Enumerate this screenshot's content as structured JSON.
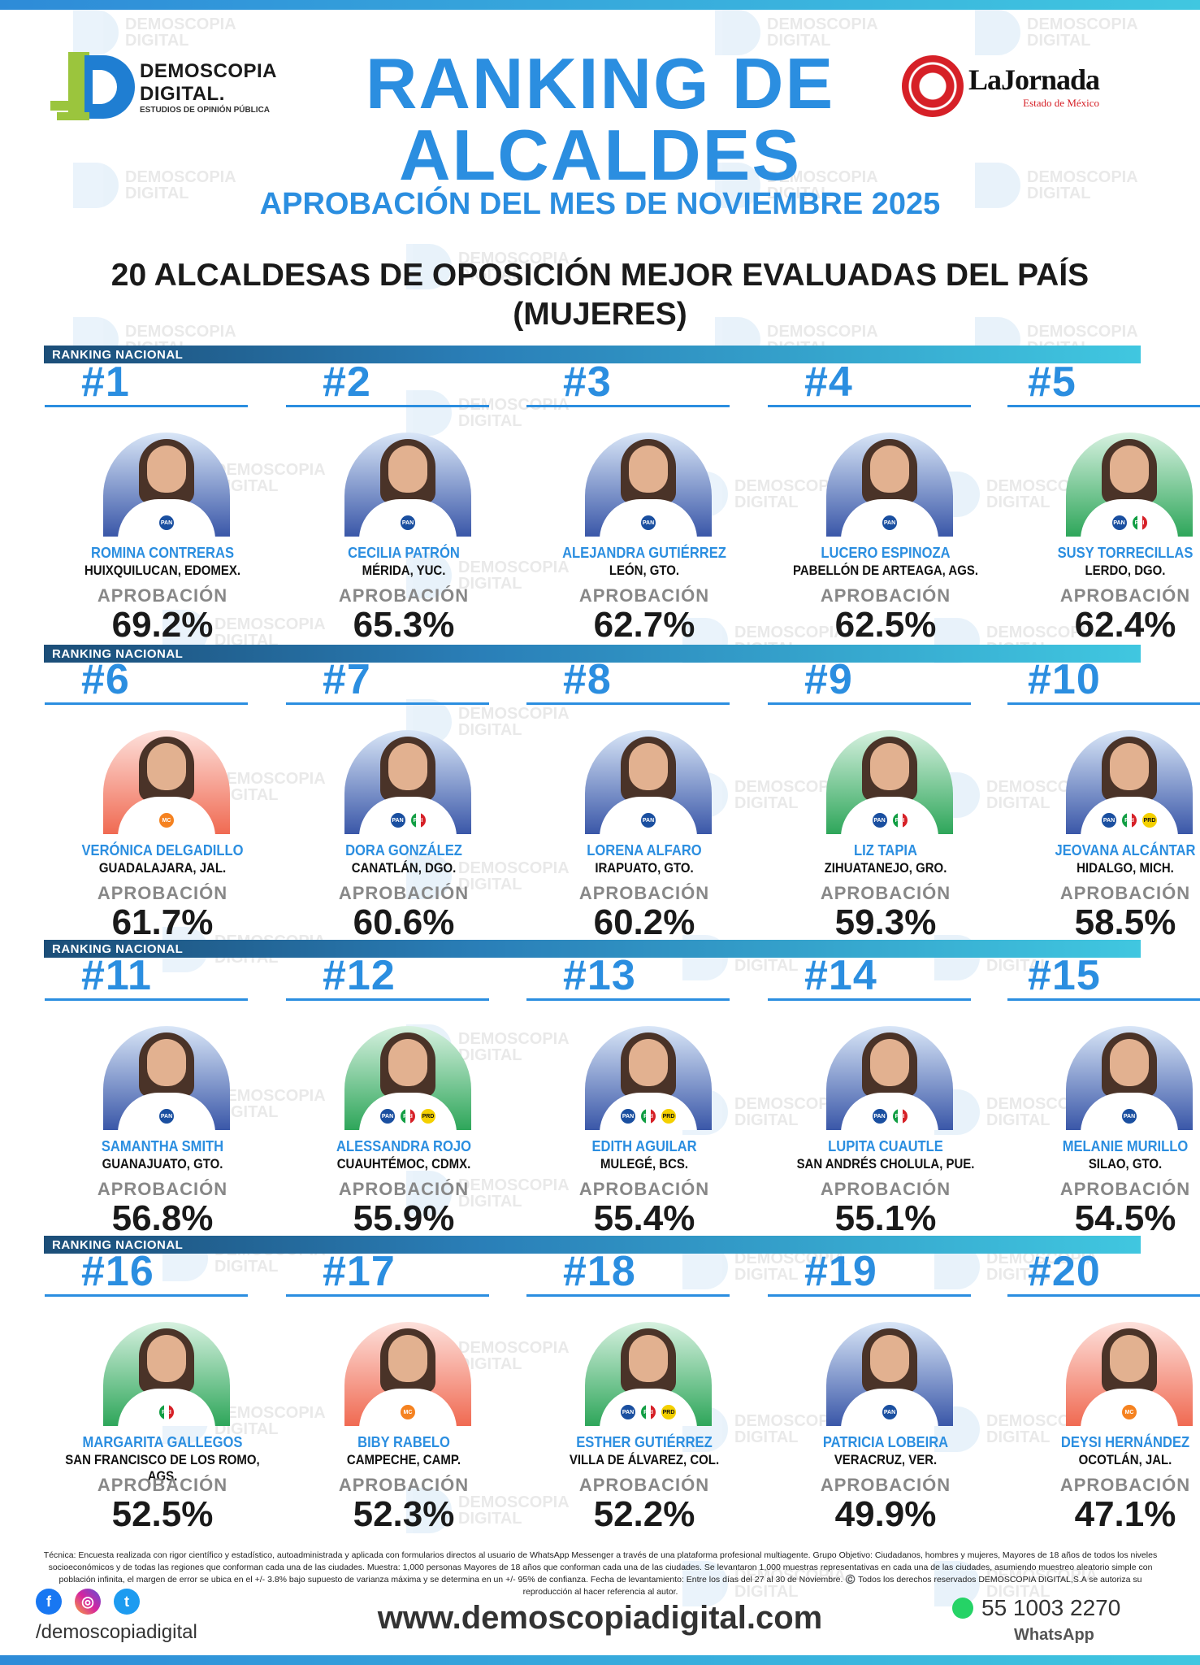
{
  "header": {
    "left_logo": {
      "line1": "DEMOSCOPIA",
      "line2": "DIGITAL.",
      "line3": "ESTUDIOS DE OPINIÓN PÚBLICA"
    },
    "right_logo": {
      "name": "LaJornada",
      "sub": "Estado de México"
    },
    "title_line1": "RANKING DE",
    "title_line2": "ALCALDES",
    "subtitle": "APROBACIÓN DEL MES DE NOVIEMBRE 2025",
    "heading_line1": "20 ALCALDESAS DE OPOSICIÓN MEJOR EVALUADAS DEL PAÍS",
    "heading_line2": "(MUJERES)"
  },
  "watermark": {
    "line1": "DEMOSCOPIA",
    "line2": "DIGITAL"
  },
  "section_label": "RANKING NACIONAL",
  "approval_label": "APROBACIÓN",
  "ranking": [
    {
      "rank": "#1",
      "name": "ROMINA CONTRERAS",
      "city": "HUIXQUILUCAN, EDOMEX.",
      "approval": "69.2%",
      "bg": "blue",
      "parties": [
        "PAN"
      ]
    },
    {
      "rank": "#2",
      "name": "CECILIA PATRÓN",
      "city": "MÉRIDA, YUC.",
      "approval": "65.3%",
      "bg": "blue",
      "parties": [
        "PAN"
      ]
    },
    {
      "rank": "#3",
      "name": "ALEJANDRA GUTIÉRREZ",
      "city": "LEÓN, GTO.",
      "approval": "62.7%",
      "bg": "blue",
      "parties": [
        "PAN"
      ]
    },
    {
      "rank": "#4",
      "name": "LUCERO ESPINOZA",
      "city": "PABELLÓN DE ARTEAGA, AGS.",
      "approval": "62.5%",
      "bg": "blue",
      "parties": [
        "PAN"
      ]
    },
    {
      "rank": "#5",
      "name": "SUSY TORRECILLAS",
      "city": "LERDO, DGO.",
      "approval": "62.4%",
      "bg": "green",
      "parties": [
        "PAN",
        "PRI"
      ]
    },
    {
      "rank": "#6",
      "name": "VERÓNICA DELGADILLO",
      "city": "GUADALAJARA, JAL.",
      "approval": "61.7%",
      "bg": "orange",
      "parties": [
        "MC"
      ]
    },
    {
      "rank": "#7",
      "name": "DORA GONZÁLEZ",
      "city": "CANATLÁN, DGO.",
      "approval": "60.6%",
      "bg": "blue",
      "parties": [
        "PAN",
        "PRI"
      ]
    },
    {
      "rank": "#8",
      "name": "LORENA ALFARO",
      "city": "IRAPUATO, GTO.",
      "approval": "60.2%",
      "bg": "blue",
      "parties": [
        "PAN"
      ]
    },
    {
      "rank": "#9",
      "name": "LIZ TAPIA",
      "city": "ZIHUATANEJO, GRO.",
      "approval": "59.3%",
      "bg": "green",
      "parties": [
        "PAN",
        "PRI"
      ]
    },
    {
      "rank": "#10",
      "name": "JEOVANA ALCÁNTAR",
      "city": "HIDALGO, MICH.",
      "approval": "58.5%",
      "bg": "blue",
      "parties": [
        "PAN",
        "PRI",
        "PRD"
      ]
    },
    {
      "rank": "#11",
      "name": "SAMANTHA SMITH",
      "city": "GUANAJUATO, GTO.",
      "approval": "56.8%",
      "bg": "blue",
      "parties": [
        "PAN"
      ]
    },
    {
      "rank": "#12",
      "name": "ALESSANDRA ROJO",
      "city": "CUAUHTÉMOC, CDMX.",
      "approval": "55.9%",
      "bg": "green",
      "parties": [
        "PAN",
        "PRI",
        "PRD"
      ]
    },
    {
      "rank": "#13",
      "name": "EDITH AGUILAR",
      "city": "MULEGÉ, BCS.",
      "approval": "55.4%",
      "bg": "blue",
      "parties": [
        "PAN",
        "PRI",
        "PRD"
      ]
    },
    {
      "rank": "#14",
      "name": "LUPITA CUAUTLE",
      "city": "SAN ANDRÉS CHOLULA, PUE.",
      "approval": "55.1%",
      "bg": "blue",
      "parties": [
        "PAN",
        "PRI"
      ]
    },
    {
      "rank": "#15",
      "name": "MELANIE MURILLO",
      "city": "SILAO, GTO.",
      "approval": "54.5%",
      "bg": "blue",
      "parties": [
        "PAN"
      ]
    },
    {
      "rank": "#16",
      "name": "MARGARITA GALLEGOS",
      "city": "SAN FRANCISCO DE LOS ROMO, AGS.",
      "approval": "52.5%",
      "bg": "green",
      "parties": [
        "PRI"
      ]
    },
    {
      "rank": "#17",
      "name": "BIBY RABELO",
      "city": "CAMPECHE, CAMP.",
      "approval": "52.3%",
      "bg": "orange",
      "parties": [
        "MC"
      ]
    },
    {
      "rank": "#18",
      "name": "ESTHER GUTIÉRREZ",
      "city": "VILLA DE ÁLVAREZ, COL.",
      "approval": "52.2%",
      "bg": "green",
      "parties": [
        "PAN",
        "PRI",
        "PRD"
      ]
    },
    {
      "rank": "#19",
      "name": "PATRICIA LOBEIRA",
      "city": "VERACRUZ, VER.",
      "approval": "49.9%",
      "bg": "blue",
      "parties": [
        "PAN"
      ]
    },
    {
      "rank": "#20",
      "name": "DEYSI HERNÁNDEZ",
      "city": "OCOTLÁN, JAL.",
      "approval": "47.1%",
      "bg": "orange",
      "parties": [
        "MC"
      ]
    }
  ],
  "footer": {
    "methodology": "Técnica: Encuesta realizada con rigor científico y estadístico, autoadministrada y aplicada con formularios directos al usuario de WhatsApp Messenger a través de una plataforma profesional multiagente. Grupo Objetivo: Ciudadanos, hombres y mujeres, Mayores de 18 años de todos los niveles socioeconómicos y de todas las regiones que conforman cada una de las ciudades. Muestra: 1,000 personas Mayores de 18 años que conforman cada una de las ciudades. Se levantaron 1,000 muestras representativas en cada una de las ciudades, asumiendo muestreo aleatorio simple con población infinita, el margen de error se ubica en el +/- 3.8% bajo supuesto de varianza máxima y se determina en un +/- 95% de confianza. Fecha de levantamiento: Entre los días del 27 al 30 de Noviembre. ©️ Todos los derechos reservados DEMOSCOPIA DIGITAL,S.A se autoriza su reproducción al hacer referencia al autor.",
    "handle": "/demoscopiadigital",
    "website": "www.demoscopiadigital.com",
    "phone": "55 1003 2270",
    "whatsapp_label": "WhatsApp"
  },
  "colors": {
    "accent": "#2b8ee0",
    "pan": "#1a4fa0",
    "mc": "#f58220",
    "pri_green": "#119e43",
    "pri_red": "#d62027",
    "prd": "#f4d000"
  }
}
